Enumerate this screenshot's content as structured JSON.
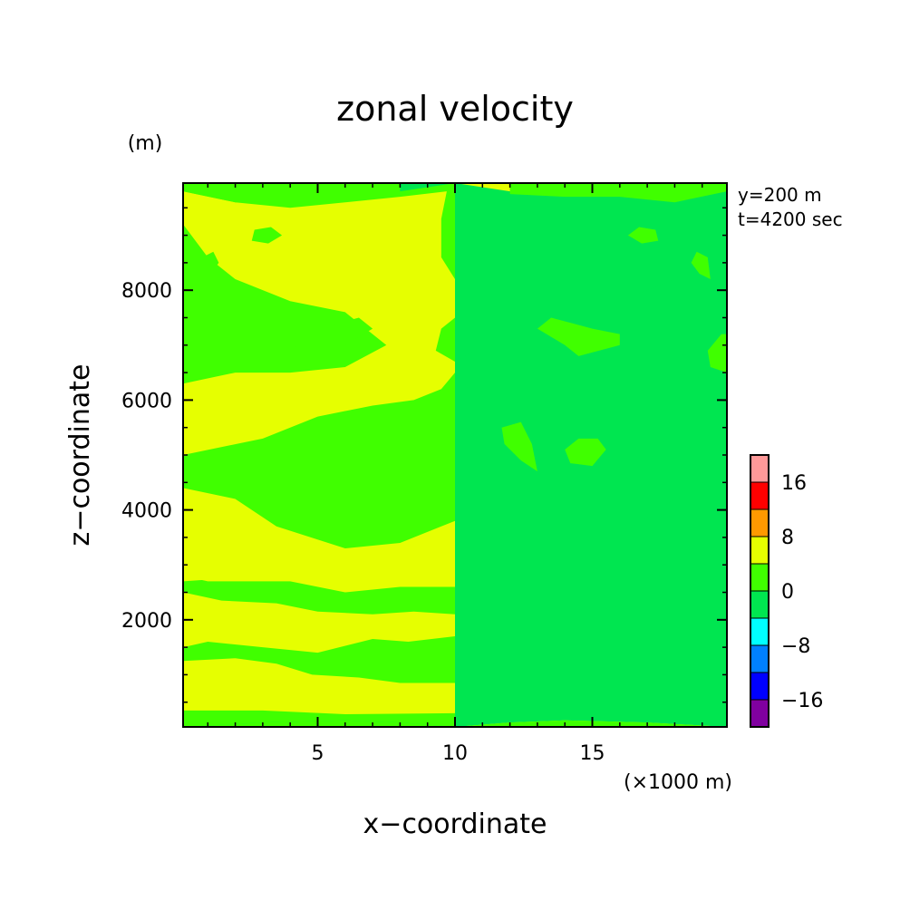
{
  "chart_data": {
    "type": "heatmap",
    "title": "zonal velocity",
    "xlabel": "x−coordinate",
    "ylabel": "z−coordinate",
    "x_unit": "(×1000 m)",
    "y_unit": "(m)",
    "annotations": [
      "y=200 m",
      "t=4200 sec"
    ],
    "xlim": [
      0.1,
      19.9
    ],
    "ylim": [
      50,
      9950
    ],
    "x_ticks": [
      {
        "value": 5,
        "label": "5"
      },
      {
        "value": 10,
        "label": "10"
      },
      {
        "value": 15,
        "label": "15"
      }
    ],
    "y_ticks": [
      {
        "value": 2000,
        "label": "2000"
      },
      {
        "value": 4000,
        "label": "4000"
      },
      {
        "value": 6000,
        "label": "6000"
      },
      {
        "value": 8000,
        "label": "8000"
      }
    ],
    "colorbar": {
      "levels": [
        -20,
        -16,
        -12,
        -8,
        -4,
        0,
        4,
        8,
        12,
        16,
        20
      ],
      "colors": [
        "#8000a0",
        "#0000ff",
        "#0080ff",
        "#00ffff",
        "#00e650",
        "#40ff00",
        "#e6ff00",
        "#ff9900",
        "#ff0000",
        "#ff9999"
      ],
      "tick_labels": [
        {
          "value": -16,
          "label": "−16"
        },
        {
          "value": -8,
          "label": "−8"
        },
        {
          "value": 0,
          "label": "0"
        },
        {
          "value": 8,
          "label": "8"
        },
        {
          "value": 16,
          "label": "16"
        }
      ]
    },
    "regions": [
      {
        "level": 4,
        "poly": [
          [
            0.1,
            5000
          ],
          [
            3,
            5300
          ],
          [
            5,
            5700
          ],
          [
            7,
            5900
          ],
          [
            8.5,
            6000
          ],
          [
            9.5,
            6200
          ],
          [
            10,
            6500
          ],
          [
            10,
            6700
          ],
          [
            9.3,
            6900
          ],
          [
            9.5,
            7300
          ],
          [
            10,
            7500
          ],
          [
            10,
            8200
          ],
          [
            9.5,
            8600
          ],
          [
            9.5,
            9300
          ],
          [
            9.7,
            9800
          ],
          [
            8,
            9700
          ],
          [
            6,
            9600
          ],
          [
            4,
            9500
          ],
          [
            2,
            9600
          ],
          [
            0.1,
            9800
          ],
          [
            0.1,
            9200
          ],
          [
            1,
            8600
          ],
          [
            2,
            8200
          ],
          [
            4,
            7800
          ],
          [
            6,
            7600
          ],
          [
            7.5,
            7000
          ],
          [
            6,
            6600
          ],
          [
            4,
            6500
          ],
          [
            2,
            6500
          ],
          [
            0.1,
            6300
          ]
        ]
      },
      {
        "level": 4,
        "poly": [
          [
            0.1,
            3900
          ],
          [
            1.5,
            3400
          ],
          [
            3,
            2800
          ],
          [
            0.1,
            2700
          ]
        ]
      },
      {
        "level": 4,
        "poly": [
          [
            0.1,
            4400
          ],
          [
            2,
            4200
          ],
          [
            3.5,
            3700
          ],
          [
            6,
            3300
          ],
          [
            8,
            3400
          ],
          [
            9.5,
            3700
          ],
          [
            10,
            3800
          ],
          [
            10,
            2600
          ],
          [
            8,
            2600
          ],
          [
            6,
            2500
          ],
          [
            4,
            2700
          ],
          [
            1,
            2700
          ],
          [
            0.1,
            2800
          ]
        ]
      },
      {
        "level": 4,
        "poly": [
          [
            0.1,
            2500
          ],
          [
            1.5,
            2350
          ],
          [
            3.5,
            2300
          ],
          [
            5,
            2150
          ],
          [
            7,
            2100
          ],
          [
            8.5,
            2150
          ],
          [
            10,
            2100
          ],
          [
            10,
            1700
          ],
          [
            8.3,
            1600
          ],
          [
            7,
            1650
          ],
          [
            5,
            1400
          ],
          [
            3,
            1500
          ],
          [
            1,
            1600
          ],
          [
            0.1,
            1500
          ]
        ]
      },
      {
        "level": 4,
        "poly": [
          [
            0.1,
            1250
          ],
          [
            2,
            1300
          ],
          [
            3.5,
            1200
          ],
          [
            4.8,
            1000
          ],
          [
            6.5,
            950
          ],
          [
            8,
            850
          ],
          [
            10,
            850
          ],
          [
            10,
            300
          ],
          [
            6,
            280
          ],
          [
            3,
            350
          ],
          [
            0.1,
            350
          ]
        ]
      },
      {
        "level": -4,
        "poly": [
          [
            0.1,
            9950
          ],
          [
            2,
            9650
          ],
          [
            4,
            9800
          ],
          [
            6,
            9750
          ],
          [
            8,
            9800
          ],
          [
            10,
            9950
          ]
        ]
      },
      {
        "level": -4,
        "poly": [
          [
            0.1,
            50
          ],
          [
            3,
            130
          ],
          [
            6,
            170
          ],
          [
            8,
            130
          ],
          [
            10,
            50
          ]
        ]
      },
      {
        "level": 0,
        "poly": [
          [
            0.7,
            8200
          ],
          [
            1.1,
            8300
          ],
          [
            1.4,
            8500
          ],
          [
            1.2,
            8700
          ],
          [
            0.8,
            8600
          ]
        ]
      },
      {
        "level": 0,
        "poly": [
          [
            2.6,
            8900
          ],
          [
            3.2,
            8850
          ],
          [
            3.7,
            9000
          ],
          [
            3.3,
            9150
          ],
          [
            2.7,
            9100
          ]
        ]
      },
      {
        "level": 0,
        "poly": [
          [
            0.1,
            6500
          ],
          [
            0.7,
            6600
          ],
          [
            0.8,
            6900
          ],
          [
            0.3,
            7200
          ],
          [
            0.1,
            7200
          ]
        ]
      },
      {
        "level": 0,
        "poly": [
          [
            4,
            7000
          ],
          [
            5.5,
            6800
          ],
          [
            6,
            7000
          ],
          [
            7,
            7300
          ],
          [
            6.5,
            7500
          ],
          [
            5,
            7300
          ],
          [
            4,
            7200
          ]
        ]
      },
      {
        "level": 0,
        "poly": [
          [
            4.5,
            5100
          ],
          [
            5,
            4800
          ],
          [
            5.8,
            4850
          ],
          [
            6,
            5100
          ],
          [
            5.5,
            5300
          ],
          [
            4.8,
            5300
          ]
        ]
      },
      {
        "level": 0,
        "poly": [
          [
            7,
            4700
          ],
          [
            7.6,
            4900
          ],
          [
            8.2,
            5200
          ],
          [
            8.3,
            5500
          ],
          [
            7.6,
            5600
          ],
          [
            7.2,
            5200
          ]
        ]
      },
      {
        "level": 0,
        "poly": [
          [
            0.1,
            9800
          ],
          [
            2,
            9600
          ],
          [
            4,
            9700
          ],
          [
            6,
            9700
          ],
          [
            8,
            9750
          ],
          [
            8,
            9950
          ],
          [
            0.1,
            9950
          ]
        ]
      },
      {
        "level": 0,
        "poly": [
          [
            0.1,
            50
          ],
          [
            3,
            130
          ],
          [
            6,
            170
          ],
          [
            8,
            130
          ],
          [
            10,
            50
          ]
        ]
      }
    ]
  }
}
